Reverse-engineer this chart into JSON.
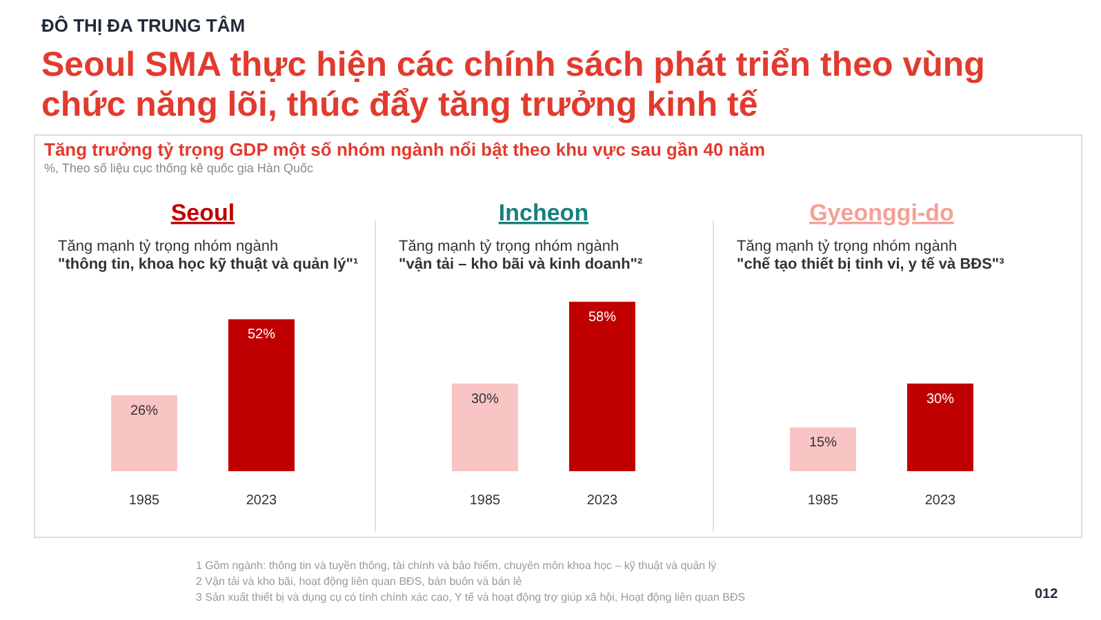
{
  "chart_data": [
    {
      "type": "other",
      "subtitle": "ĐÔ THỊ ĐA TRUNG TÂM",
      "title": "Seoul SMA thực hiện các chính sách phát triển theo vùng\nchức năng lõi, thúc đẩy tăng trưởng kinh tế",
      "annotations": [
        "Tăng trưởng tỷ trọng GDP một số nhóm ngành nổi bật theo khu vực sau gần 40 năm",
        "%, Theo số liệu cục thống kê quốc gia Hàn Quốc",
        "1 Gồm ngành: thông tin và tuyền thông, tài chính và bảo hiểm, chuyên môn khoa học – kỹ thuật và quản lý",
        "2 Vận tải và kho bãi, hoạt động liên quan BĐS, bán buôn và bán lẻ",
        "3 Sản xuất thiết bị và dụng cụ có tính chính xác cao, Y tế và hoạt động trợ giúp xã hội, Hoạt động liên quan BĐS",
        "012"
      ]
    },
    {
      "type": "bar",
      "title": "Seoul",
      "subtitle": "Tăng mạnh tỷ trọng nhóm ngành\n\"thông tin, khoa học kỹ thuật và quản lý\"¹",
      "categories": [
        "1985",
        "2023"
      ],
      "values": [
        26,
        52
      ],
      "value_labels": [
        "26%",
        "52%"
      ],
      "colors": [
        "#f9c4c4",
        "#c00000"
      ],
      "tick_labels": "x"
    },
    {
      "type": "bar",
      "title": "Incheon",
      "subtitle": "Tăng mạnh tỷ trọng nhóm ngành\n\"vận tải – kho bãi và kinh doanh\"²",
      "categories": [
        "1985",
        "2023"
      ],
      "values": [
        30,
        58
      ],
      "value_labels": [
        "30%",
        "58%"
      ],
      "colors": [
        "#f9c4c4",
        "#c00000"
      ],
      "tick_labels": "x"
    },
    {
      "type": "bar",
      "title": "Gyeonggi-do",
      "subtitle": "Tăng mạnh tỷ trọng nhóm ngành\n\"chế tạo thiết bị tinh vi, y tế và BĐS\"³",
      "categories": [
        "1985",
        "2023"
      ],
      "values": [
        15,
        30
      ],
      "value_labels": [
        "15%",
        "30%"
      ],
      "colors": [
        "#f9c4c4",
        "#c00000"
      ],
      "tick_labels": "x"
    }
  ]
}
